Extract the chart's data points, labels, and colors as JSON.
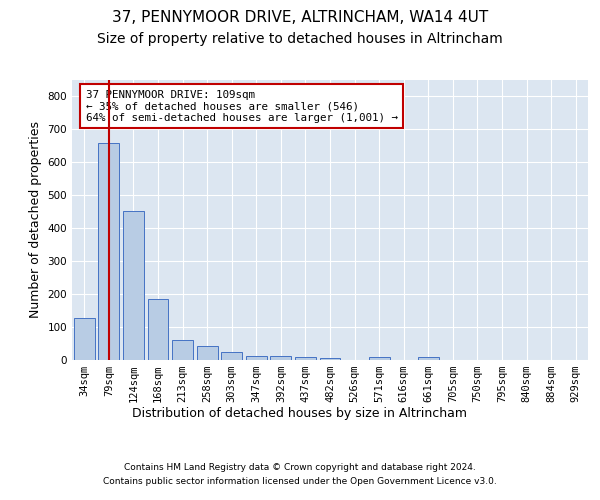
{
  "title": "37, PENNYMOOR DRIVE, ALTRINCHAM, WA14 4UT",
  "subtitle": "Size of property relative to detached houses in Altrincham",
  "xlabel": "Distribution of detached houses by size in Altrincham",
  "ylabel": "Number of detached properties",
  "categories": [
    "34sqm",
    "79sqm",
    "124sqm",
    "168sqm",
    "213sqm",
    "258sqm",
    "303sqm",
    "347sqm",
    "392sqm",
    "437sqm",
    "482sqm",
    "526sqm",
    "571sqm",
    "616sqm",
    "661sqm",
    "705sqm",
    "750sqm",
    "795sqm",
    "840sqm",
    "884sqm",
    "929sqm"
  ],
  "values": [
    128,
    658,
    452,
    185,
    60,
    42,
    25,
    13,
    13,
    10,
    6,
    0,
    8,
    0,
    8,
    0,
    0,
    0,
    0,
    0,
    0
  ],
  "bar_color": "#b8cce4",
  "bar_edge_color": "#4472c4",
  "property_bin_index": 1,
  "vline_color": "#c00000",
  "annotation_text": "37 PENNYMOOR DRIVE: 109sqm\n← 35% of detached houses are smaller (546)\n64% of semi-detached houses are larger (1,001) →",
  "annotation_box_edgecolor": "#c00000",
  "annotation_box_facecolor": "#ffffff",
  "footer_line1": "Contains HM Land Registry data © Crown copyright and database right 2024.",
  "footer_line2": "Contains public sector information licensed under the Open Government Licence v3.0.",
  "ylim": [
    0,
    850
  ],
  "plot_bg_color": "#dce6f1",
  "fig_bg_color": "#ffffff",
  "grid_color": "#ffffff",
  "title_fontsize": 11,
  "subtitle_fontsize": 10,
  "ylabel_fontsize": 9,
  "xlabel_fontsize": 9,
  "tick_fontsize": 7.5
}
